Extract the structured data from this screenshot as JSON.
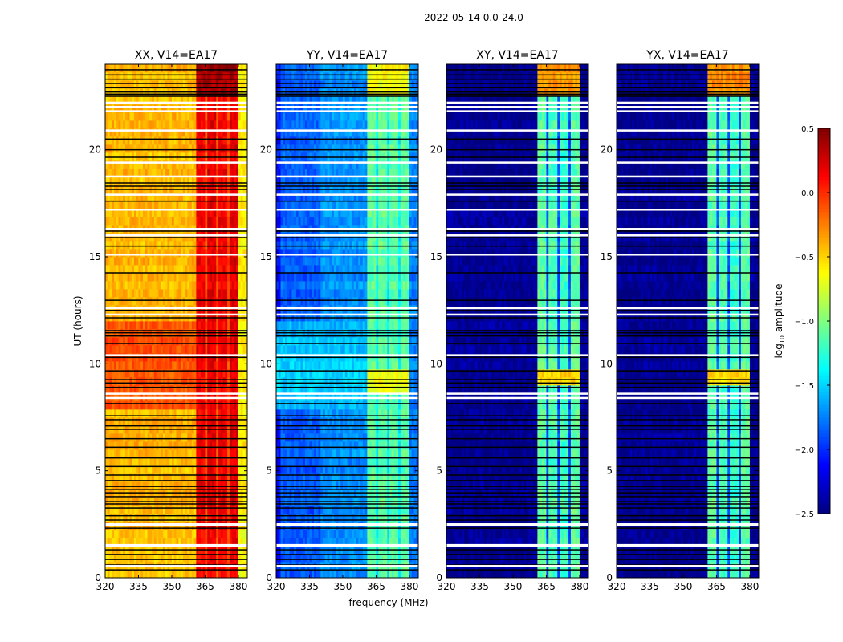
{
  "chart_data": {
    "type": "heatmap",
    "suptitle": "2022-05-14 0.0-24.0",
    "xlabel": "frequency (MHz)",
    "ylabel": "UT (hours)",
    "xlim": [
      320,
      384
    ],
    "ylim": [
      0,
      24
    ],
    "xticks": [
      "320",
      "335",
      "350",
      "365",
      "380"
    ],
    "xtick_values": [
      320,
      335,
      350,
      365,
      380
    ],
    "yticks": [
      "0",
      "5",
      "10",
      "15",
      "20"
    ],
    "ytick_values": [
      0,
      5,
      10,
      15,
      20
    ],
    "colorbar": {
      "label": "log10 amplitude",
      "label_main": "log",
      "label_sub": "10",
      "label_rest": " amplitude",
      "range": [
        -2.5,
        0.5
      ],
      "ticks": [
        "0.5",
        "0.0",
        "−0.5",
        "−1.0",
        "−1.5",
        "−2.0",
        "−2.5"
      ],
      "tick_values": [
        0.5,
        0.0,
        -0.5,
        -1.0,
        -1.5,
        -2.0,
        -2.5
      ],
      "colormap": "jet"
    },
    "flagged_hours_black": [
      23.74,
      23.5,
      23.3,
      23.1,
      22.9,
      22.7,
      22.6,
      22.5,
      20.5,
      20.0,
      19.65,
      18.45,
      18.3,
      18.15,
      17.6,
      16.2,
      15.9,
      15.5,
      14.25,
      12.97,
      12.5,
      12.15,
      11.55,
      11.45,
      11.3,
      10.95,
      10.3,
      9.67,
      9.26,
      9.1,
      8.9,
      8.14,
      7.57,
      7.39,
      7.1,
      6.94,
      6.5,
      6.1,
      5.6,
      5.2,
      4.8,
      4.54,
      4.27,
      4.12,
      3.97,
      3.79,
      3.56,
      3.45,
      3.26,
      2.9,
      2.7,
      2.32,
      1.31,
      1.09,
      0.86,
      0.6,
      0.37
    ],
    "gap_hours_white": [
      22.2,
      22.0,
      21.8,
      20.9,
      19.4,
      18.75,
      17.9,
      17.2,
      16.3,
      16.0,
      15.1,
      12.6,
      12.3,
      10.4,
      8.6,
      8.4,
      2.5,
      1.53,
      0.55
    ],
    "panels": [
      {
        "title": "XX, V14=EA17",
        "regions": [
          {
            "f": [
              320,
              384
            ],
            "t": [
              0,
              24
            ],
            "v": -0.42
          },
          {
            "f": [
              320,
              384
            ],
            "t": [
              8,
              12
            ],
            "v": -0.12
          },
          {
            "f": [
              360.7,
              365
            ],
            "t": [
              0,
              24
            ],
            "v": 0.15
          },
          {
            "f": [
              365,
              366
            ],
            "t": [
              0,
              24
            ],
            "v": -0.1
          },
          {
            "f": [
              366,
              370.5
            ],
            "t": [
              0,
              24
            ],
            "v": 0.2
          },
          {
            "f": [
              370.5,
              371
            ],
            "t": [
              0,
              24
            ],
            "v": -0.1
          },
          {
            "f": [
              371,
              375
            ],
            "t": [
              0,
              24
            ],
            "v": 0.15
          },
          {
            "f": [
              375,
              375.6
            ],
            "t": [
              0,
              24
            ],
            "v": -0.1
          },
          {
            "f": [
              375.6,
              380.4
            ],
            "t": [
              0,
              24
            ],
            "v": 0.2
          },
          {
            "f": [
              360.7,
              380.4
            ],
            "t": [
              22.5,
              24
            ],
            "v": 0.4
          },
          {
            "f": [
              380.4,
              384
            ],
            "t": [
              0,
              24
            ],
            "v": -0.6
          }
        ]
      },
      {
        "title": "YY, V14=EA17",
        "regions": [
          {
            "f": [
              320,
              384
            ],
            "t": [
              0,
              24
            ],
            "v": -1.85
          },
          {
            "f": [
              320,
              322
            ],
            "t": [
              0,
              24
            ],
            "v": -2.1
          },
          {
            "f": [
              340,
              360.7
            ],
            "t": [
              0,
              24
            ],
            "v": -1.7
          },
          {
            "f": [
              320,
              384
            ],
            "t": [
              8,
              12
            ],
            "v": -1.55
          },
          {
            "f": [
              360.7,
              380.4
            ],
            "t": [
              0,
              24
            ],
            "v": -1.1
          },
          {
            "f": [
              365,
              366
            ],
            "t": [
              0,
              24
            ],
            "v": -1.4
          },
          {
            "f": [
              370.5,
              371
            ],
            "t": [
              0,
              24
            ],
            "v": -1.4
          },
          {
            "f": [
              375,
              375.6
            ],
            "t": [
              0,
              24
            ],
            "v": -1.4
          },
          {
            "f": [
              360.7,
              380.4
            ],
            "t": [
              22.5,
              24
            ],
            "v": -0.65
          },
          {
            "f": [
              360.7,
              380.4
            ],
            "t": [
              8.5,
              9.6
            ],
            "v": -0.7
          },
          {
            "f": [
              380.4,
              384
            ],
            "t": [
              0,
              24
            ],
            "v": -1.75
          }
        ]
      },
      {
        "title": "XY, V14=EA17",
        "regions": [
          {
            "f": [
              320,
              384
            ],
            "t": [
              0,
              24
            ],
            "v": -2.45
          },
          {
            "f": [
              360.7,
              365
            ],
            "t": [
              0,
              24
            ],
            "v": -1.1
          },
          {
            "f": [
              365,
              366
            ],
            "t": [
              0,
              24
            ],
            "v": -1.9
          },
          {
            "f": [
              366,
              370.5
            ],
            "t": [
              0,
              24
            ],
            "v": -1.15
          },
          {
            "f": [
              370.5,
              371
            ],
            "t": [
              0,
              24
            ],
            "v": -1.9
          },
          {
            "f": [
              371,
              375
            ],
            "t": [
              0,
              24
            ],
            "v": -1.2
          },
          {
            "f": [
              375,
              375.6
            ],
            "t": [
              0,
              24
            ],
            "v": -1.9
          },
          {
            "f": [
              375.6,
              380.4
            ],
            "t": [
              0,
              24
            ],
            "v": -1.1
          },
          {
            "f": [
              360.7,
              380.4
            ],
            "t": [
              22.5,
              24
            ],
            "v": -0.3
          },
          {
            "f": [
              360.7,
              380.4
            ],
            "t": [
              9.1,
              9.6
            ],
            "v": -0.5
          }
        ]
      },
      {
        "title": "YX, V14=EA17",
        "regions": [
          {
            "f": [
              320,
              384
            ],
            "t": [
              0,
              24
            ],
            "v": -2.45
          },
          {
            "f": [
              360.7,
              365
            ],
            "t": [
              0,
              24
            ],
            "v": -1.1
          },
          {
            "f": [
              365,
              366
            ],
            "t": [
              0,
              24
            ],
            "v": -1.9
          },
          {
            "f": [
              366,
              370.5
            ],
            "t": [
              0,
              24
            ],
            "v": -1.15
          },
          {
            "f": [
              370.5,
              371
            ],
            "t": [
              0,
              24
            ],
            "v": -1.9
          },
          {
            "f": [
              371,
              375
            ],
            "t": [
              0,
              24
            ],
            "v": -1.2
          },
          {
            "f": [
              375,
              375.6
            ],
            "t": [
              0,
              24
            ],
            "v": -1.9
          },
          {
            "f": [
              375.6,
              380.4
            ],
            "t": [
              0,
              24
            ],
            "v": -1.1
          },
          {
            "f": [
              360.7,
              380.4
            ],
            "t": [
              22.5,
              24
            ],
            "v": -0.3
          },
          {
            "f": [
              360.7,
              380.4
            ],
            "t": [
              9.1,
              9.6
            ],
            "v": -0.5
          }
        ]
      }
    ]
  }
}
